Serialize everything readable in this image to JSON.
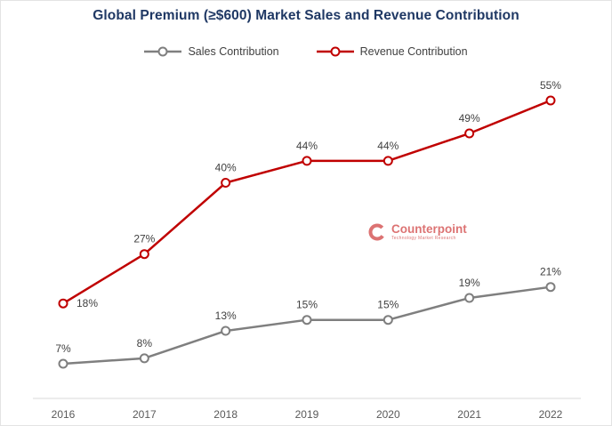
{
  "title": "Global Premium (≥$600) Market Sales and Revenue Contribution",
  "watermark": {
    "brand": "Counterpoint",
    "tagline": "Technology Market Research"
  },
  "colors": {
    "title": "#1F3864",
    "sales": "#7F7F7F",
    "revenue": "#C00000",
    "axis_line": "#D9D9D9",
    "data_label_text": "#404040",
    "axis_text": "#595959",
    "watermark": "#C00000"
  },
  "chart_data": {
    "type": "line",
    "title": "Global Premium (≥$600) Market Sales and Revenue Contribution",
    "categories": [
      "2016",
      "2017",
      "2018",
      "2019",
      "2020",
      "2021",
      "2022"
    ],
    "series": [
      {
        "name": "Sales Contribution",
        "color": "#7F7F7F",
        "values": [
          7,
          8,
          13,
          15,
          15,
          19,
          21
        ],
        "label_dx": [
          0,
          0,
          0,
          0,
          0,
          0,
          0
        ],
        "label_dy": [
          0,
          0,
          0,
          0,
          0,
          0,
          0
        ]
      },
      {
        "name": "Revenue Contribution",
        "color": "#C00000",
        "values": [
          18,
          27,
          40,
          44,
          44,
          49,
          55
        ],
        "label_dx": [
          27,
          0,
          0,
          0,
          0,
          0,
          0
        ],
        "label_dy": [
          17,
          0,
          0,
          0,
          0,
          0,
          0
        ]
      }
    ],
    "data_labels": "percent",
    "xlabel": "",
    "ylabel": "",
    "ylim": [
      0,
      60
    ],
    "grid": false,
    "legend_position": "top"
  }
}
